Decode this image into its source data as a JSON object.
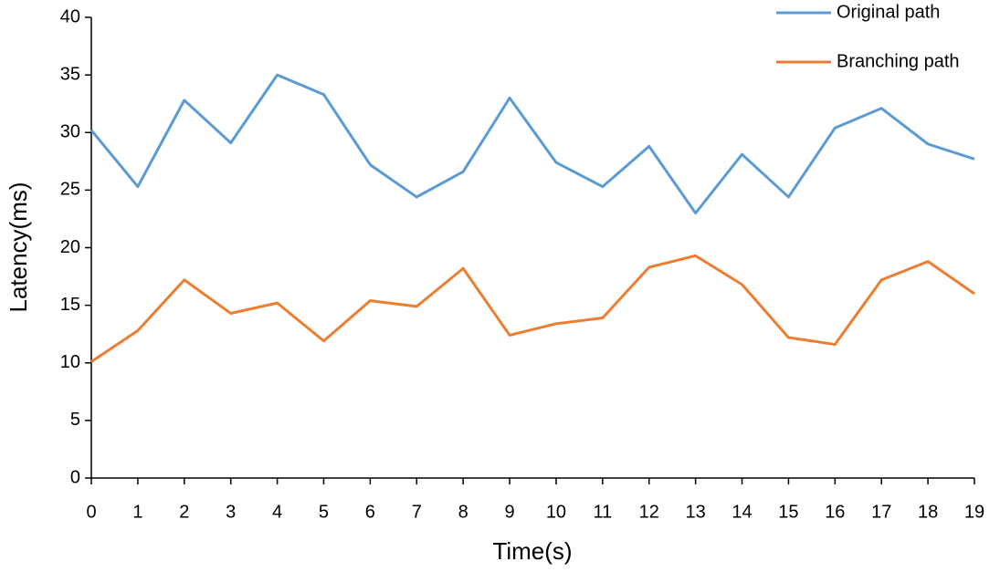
{
  "chart_data": {
    "type": "line",
    "x_label": "Time(s)",
    "y_label": "Latency(ms)",
    "x": [
      0,
      1,
      2,
      3,
      4,
      5,
      6,
      7,
      8,
      9,
      10,
      11,
      12,
      13,
      14,
      15,
      16,
      17,
      18,
      19
    ],
    "series": [
      {
        "name": "Original path",
        "color": "#5b9bd5",
        "values": [
          30.2,
          25.3,
          32.8,
          29.1,
          35.0,
          33.3,
          27.2,
          24.4,
          26.6,
          33.0,
          27.4,
          25.3,
          28.8,
          23.0,
          28.1,
          24.4,
          30.4,
          32.1,
          29.0,
          27.7
        ]
      },
      {
        "name": "Branching path",
        "color": "#ed7d31",
        "values": [
          10.1,
          12.8,
          17.2,
          14.3,
          15.2,
          11.9,
          15.4,
          14.9,
          18.2,
          12.4,
          13.4,
          13.9,
          18.3,
          19.3,
          16.8,
          12.2,
          11.6,
          17.2,
          18.8,
          16.0
        ]
      }
    ],
    "xlim": [
      0,
      19
    ],
    "xticks": [
      0,
      1,
      2,
      3,
      4,
      5,
      6,
      7,
      8,
      9,
      10,
      11,
      12,
      13,
      14,
      15,
      16,
      17,
      18,
      19
    ],
    "ylim": [
      0,
      40
    ],
    "yticks": [
      0,
      5,
      10,
      15,
      20,
      25,
      30,
      35,
      40
    ],
    "grid": false,
    "legend": "top-right"
  }
}
